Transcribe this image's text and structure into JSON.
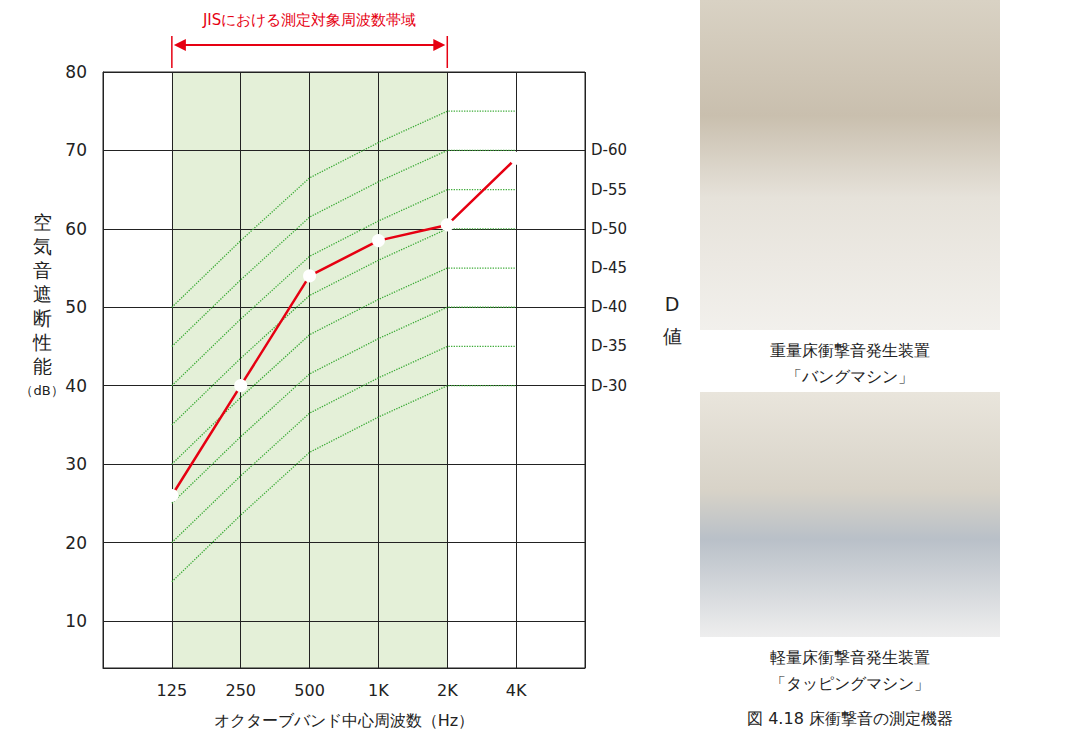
{
  "chart_data": {
    "type": "line",
    "band": {
      "label": "JISにおける測定対象周波数帯域",
      "from": "125",
      "to": "2K",
      "color": "#e4f0d8"
    },
    "categories": [
      null,
      "125",
      "250",
      "500",
      "1K",
      "2K",
      "4K",
      null
    ],
    "x_label": "オクターブバンド中心周波数（Hz）",
    "y_label": "空気音遮断性能",
    "y_unit": "（dB）",
    "right_label": "D値",
    "ylim": [
      4,
      80
    ],
    "yticks": [
      10,
      20,
      30,
      40,
      50,
      60,
      70,
      80
    ],
    "grid": true,
    "series": [
      {
        "color": "#e60012",
        "marker": "hollow_circle",
        "line_style": "solid",
        "values": [
          null,
          26,
          40,
          54,
          58.5,
          60.5,
          69,
          null
        ]
      },
      {
        "label": "D-30",
        "color": "#3aaa35",
        "marker": "none",
        "line_style": "dotted",
        "values": [
          null,
          15,
          23.5,
          31.5,
          36,
          40,
          40,
          null
        ]
      },
      {
        "label": "D-35",
        "color": "#3aaa35",
        "marker": "none",
        "line_style": "dotted",
        "values": [
          null,
          20,
          28.5,
          36.5,
          41,
          45,
          45,
          null
        ]
      },
      {
        "label": "D-40",
        "color": "#3aaa35",
        "marker": "none",
        "line_style": "dotted",
        "values": [
          null,
          25,
          33.5,
          41.5,
          46,
          50,
          50,
          null
        ]
      },
      {
        "label": "D-45",
        "color": "#3aaa35",
        "marker": "none",
        "line_style": "dotted",
        "values": [
          null,
          30,
          38.5,
          46.5,
          51,
          55,
          55,
          null
        ]
      },
      {
        "label": "D-50",
        "color": "#3aaa35",
        "marker": "none",
        "line_style": "dotted",
        "values": [
          null,
          35,
          43.5,
          51.5,
          56,
          60,
          60,
          null
        ]
      },
      {
        "label": "D-55",
        "color": "#3aaa35",
        "marker": "none",
        "line_style": "dotted",
        "values": [
          null,
          40,
          48.5,
          56.5,
          61,
          65,
          65,
          null
        ]
      },
      {
        "label": "D-60",
        "color": "#3aaa35",
        "marker": "none",
        "line_style": "dotted",
        "values": [
          null,
          45,
          53.5,
          61.5,
          66,
          70,
          70,
          null
        ]
      },
      {
        "label": null,
        "color": "#3aaa35",
        "marker": "none",
        "line_style": "dotted",
        "values": [
          null,
          50,
          58.5,
          66.5,
          71,
          75,
          75,
          null
        ]
      }
    ]
  },
  "photos": [
    {
      "caption": [
        "重量床衝撃音発生装置",
        "「バングマシン」"
      ]
    },
    {
      "caption": [
        "軽量床衝撃音発生装置",
        "「タッピングマシン」"
      ]
    }
  ],
  "figure_caption": "図 4.18 床衝撃音の測定機器"
}
